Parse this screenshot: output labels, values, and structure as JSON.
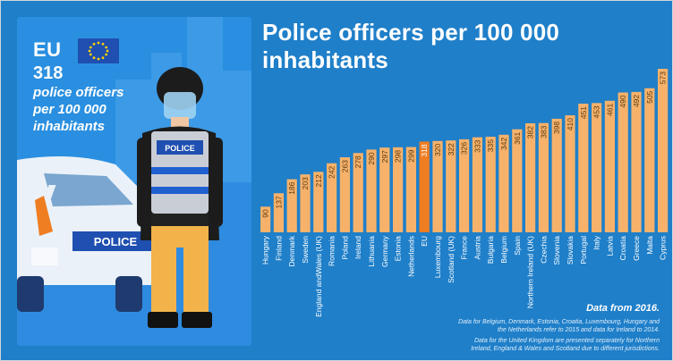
{
  "left_panel": {
    "eu_label": "EU",
    "eu_value": "318",
    "desc_line1": "police officers",
    "desc_line2": "per 100 000",
    "desc_line3": "inhabitants",
    "vest_label": "POLICE",
    "car_label": "POLICE"
  },
  "notes": {
    "data_year": "Data from 2016.",
    "note1_line1": "Data for Belgium, Denmark, Estonia, Croatia, Luxembourg, Hungary and",
    "note1_line2": "the Netherlands refer to 2015 and data for Ireland to 2014.",
    "note2_line1": "Data for the United Kingdom are presented separately for Northern",
    "note2_line2": "Ireland, England & Wales and Scotland due to different jurisdictions."
  },
  "colors": {
    "background": "#1f7fc9",
    "bar": "#f6b26b",
    "bar_eu": "#ef7d22",
    "label_text": "#ffffff"
  },
  "chart_data": {
    "type": "bar",
    "title": "Police officers per 100 000 inhabitants",
    "categories": [
      "Hungary",
      "Finland",
      "Denmark",
      "Sweden",
      "England andWales (UK)",
      "Romania",
      "Poland",
      "Ireland",
      "Lithuania",
      "Germany",
      "Estonia",
      "Netherlands",
      "EU",
      "Luxembourg",
      "Scotland (UK)",
      "France",
      "Austria",
      "Bulgaria",
      "Belgium",
      "Spain",
      "Northern Ireland (UK)",
      "Czechia",
      "Slovenia",
      "Slovakia",
      "Portugal",
      "Italy",
      "Latvia",
      "Croatia",
      "Greece",
      "Malta",
      "Cyprus"
    ],
    "values": [
      90,
      137,
      186,
      203,
      212,
      242,
      263,
      278,
      290,
      297,
      298,
      299,
      318,
      320,
      322,
      326,
      333,
      335,
      342,
      361,
      382,
      383,
      398,
      410,
      451,
      453,
      461,
      490,
      492,
      505,
      573
    ],
    "highlight": "EU",
    "ylim": [
      0,
      573
    ]
  }
}
